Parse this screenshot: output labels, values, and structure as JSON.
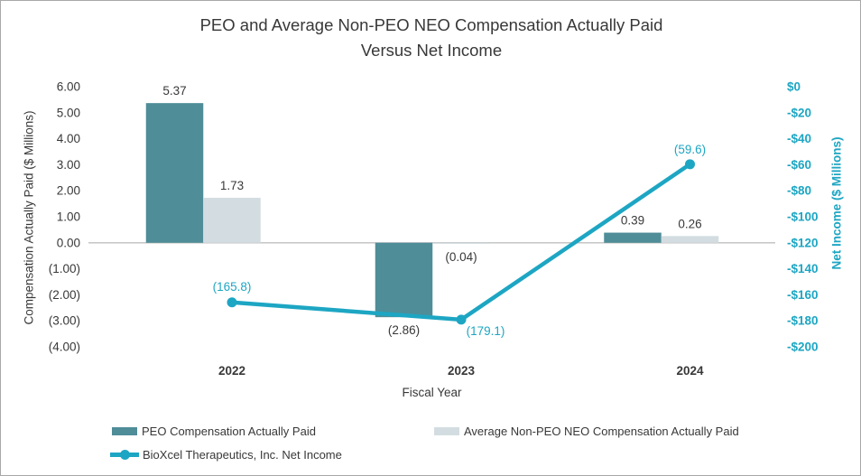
{
  "title": {
    "line1": "PEO and Average Non-PEO NEO Compensation Actually Paid",
    "line2": "Versus Net Income"
  },
  "chart_data": {
    "type": "combo (clustered bar + line, dual axis)",
    "categories": [
      "2022",
      "2023",
      "2024"
    ],
    "series": [
      {
        "name": "PEO Compensation Actually Paid",
        "type": "bar",
        "axis": "left",
        "values": [
          5.37,
          -2.86,
          0.39
        ],
        "labels": [
          "5.37",
          "(2.86)",
          "0.39"
        ],
        "color": "#4f8d98"
      },
      {
        "name": "Average Non-PEO NEO Compensation Actually Paid",
        "type": "bar",
        "axis": "left",
        "values": [
          1.73,
          -0.04,
          0.26
        ],
        "labels": [
          "1.73",
          "(0.04)",
          "0.26"
        ],
        "color": "#d3dde1"
      },
      {
        "name": "BioXcel Therapeutics, Inc. Net Income",
        "type": "line",
        "axis": "right",
        "values": [
          -165.8,
          -179.1,
          -59.6
        ],
        "labels": [
          "(165.8)",
          "(179.1)",
          "(59.6)"
        ],
        "color": "#1da6c3"
      }
    ],
    "xlabel": "Fiscal Year",
    "left_axis": {
      "title": "Compensation Actually Paid ($ Millions)",
      "ticks": [
        "6.00",
        "5.00",
        "4.00",
        "3.00",
        "2.00",
        "1.00",
        "0.00",
        "(1.00)",
        "(2.00)",
        "(3.00)",
        "(4.00)"
      ],
      "max": 6,
      "min": -4
    },
    "right_axis": {
      "title": "Net Income ($ Millions)",
      "ticks": [
        "$0",
        "-$20",
        "-$40",
        "-$60",
        "-$80",
        "-$100",
        "-$120",
        "-$140",
        "-$160",
        "-$180",
        "-$200"
      ],
      "max": 0,
      "min": -200
    },
    "grid": "off",
    "legend_position": "bottom-left"
  },
  "colors": {
    "peo_bar": "#4f8d98",
    "non_peo_bar": "#d3dde1",
    "net_income_line": "#1da6c3",
    "axis_line": "#bfbfbf",
    "text": "#383838",
    "frame_border": "#a8a8a8"
  }
}
